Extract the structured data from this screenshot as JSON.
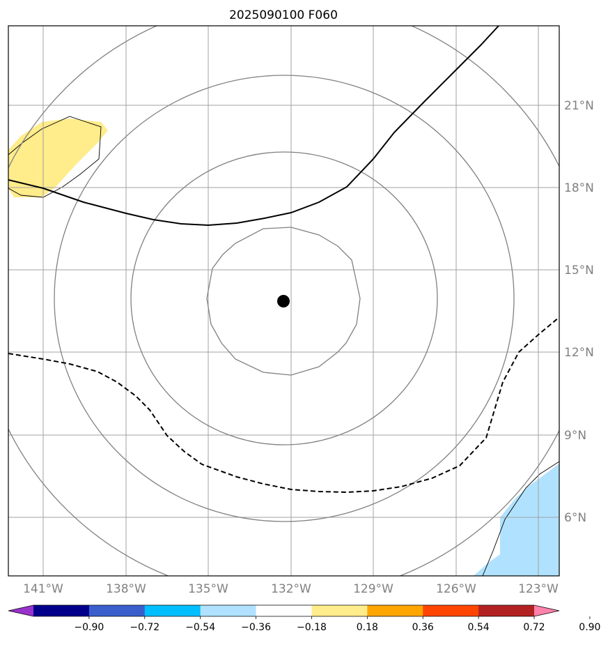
{
  "title": "2025090100 F060",
  "lon_labels": [
    "141°W",
    "138°W",
    "135°W",
    "132°W",
    "129°W",
    "126°W",
    "123°W"
  ],
  "lat_labels": [
    "21°N",
    "18°N",
    "15°N",
    "12°N",
    "9°N",
    "6°N"
  ],
  "colorbar": {
    "colors": [
      "#9932cc",
      "#00008b",
      "#3a5fcd",
      "#00bfff",
      "#b0e2ff",
      "#ffffff",
      "#ffec8b",
      "#ffa500",
      "#ff4500",
      "#b22222",
      "#ff82ab"
    ],
    "ticks": [
      "−0.90",
      "−0.72",
      "−0.54",
      "−0.36",
      "−0.18",
      "0.18",
      "0.36",
      "0.54",
      "0.72",
      "0.90"
    ]
  },
  "colors": {
    "grid": "#a0a0a0",
    "contour": "#808080",
    "positive_fill": "#ffec8b",
    "negative_fill": "#b0e2ff",
    "label": "#808080"
  },
  "center_marker": {
    "lon": -132.2,
    "lat": 13.9
  }
}
